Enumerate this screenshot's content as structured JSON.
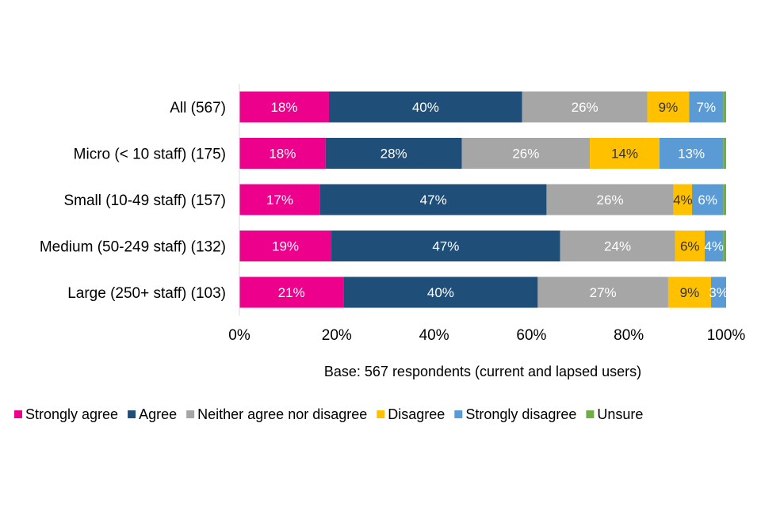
{
  "chart_data": {
    "type": "bar",
    "orientation": "horizontal-stacked-100",
    "title": "",
    "xlabel": "Base: 567 respondents (current and lapsed users)",
    "ylabel": "",
    "xlim": [
      0,
      100
    ],
    "x_ticks": [
      "0%",
      "20%",
      "40%",
      "60%",
      "80%",
      "100%"
    ],
    "grid": false,
    "legend_position": "bottom",
    "categories": [
      "All (567)",
      "Micro (< 10 staff) (175)",
      "Small (10-49 staff) (157)",
      "Medium (50-249 staff) (132)",
      "Large (250+ staff) (103)"
    ],
    "series": [
      {
        "name": "Strongly agree",
        "color": "#EC008C",
        "label_color": "#ffffff",
        "values": [
          18.4,
          17.7,
          16.6,
          18.9,
          21.4
        ],
        "labels": [
          "18%",
          "18%",
          "17%",
          "19%",
          "21%"
        ]
      },
      {
        "name": "Agree",
        "color": "#1F4E79",
        "label_color": "#ffffff",
        "values": [
          39.7,
          28.0,
          46.5,
          47.0,
          39.9
        ],
        "labels": [
          "40%",
          "28%",
          "47%",
          "47%",
          "40%"
        ]
      },
      {
        "name": "Neither agree nor disagree",
        "color": "#A6A6A6",
        "label_color": "#ffffff",
        "values": [
          25.7,
          26.3,
          26.1,
          23.6,
          26.8
        ],
        "labels": [
          "26%",
          "26%",
          "26%",
          "24%",
          "27%"
        ]
      },
      {
        "name": "Disagree",
        "color": "#FFC000",
        "label_color": "#333333",
        "values": [
          8.6,
          14.3,
          3.8,
          6.1,
          8.8
        ],
        "labels": [
          "9%",
          "14%",
          "4%",
          "6%",
          "9%"
        ]
      },
      {
        "name": "Strongly disagree",
        "color": "#5B9BD5",
        "label_color": "#ffffff",
        "values": [
          7.0,
          13.1,
          6.4,
          3.8,
          3.1
        ],
        "labels": [
          "7%",
          "13%",
          "6%",
          "4%",
          "3%"
        ]
      },
      {
        "name": "Unsure",
        "color": "#70AD47",
        "label_color": "#ffffff",
        "values": [
          0.6,
          0.6,
          0.6,
          0.6,
          0.0
        ],
        "labels": [
          "",
          "",
          "",
          "",
          ""
        ]
      }
    ]
  }
}
